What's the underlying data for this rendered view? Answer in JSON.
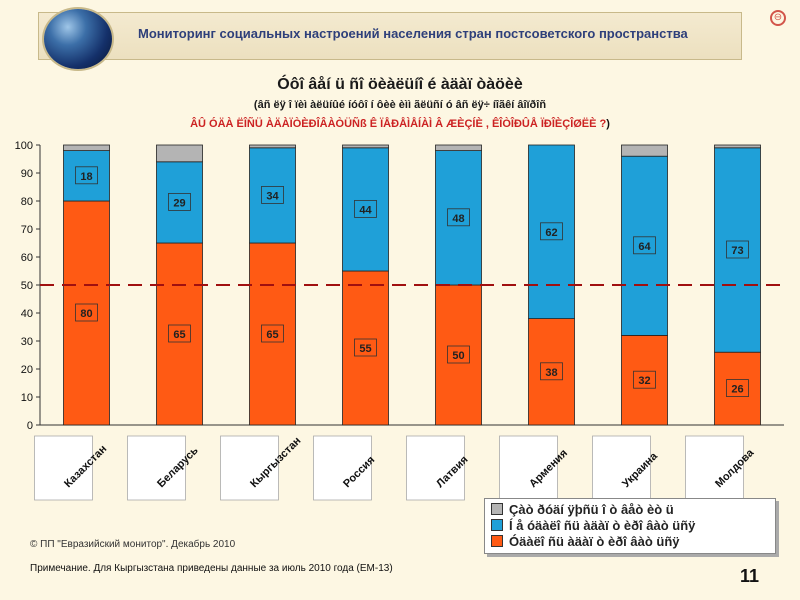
{
  "header": {
    "title": "Мониторинг социальных настроений населения стран постсоветского пространства",
    "logo_icon": "globe-icon",
    "sync_icon": "sync-icon"
  },
  "chart_title": {
    "line1": "Óôî âåí ü ñî öèàëüíî é àäàï òàöèè",
    "line2": "(âñ ëÿ î ïèì àëüíûé íóôî í ôèè èìì ãëüñí ó âñ ëÿ÷ íîãêí âîïðîñ",
    "line3": "ÂÛ ÓÄÀ ËÎÑÜ ÀÄÀÏÒÈÐÎÂÀÒÜÑß Ê ÏÅÐÅÌÅÍÀÌ Â ÆÈÇÍÈ , ÊÎÒÎÐÛÅ ÏÐÎÈÇÎØËÈ ?",
    "line3_paren": ")"
  },
  "chart_data": {
    "type": "bar",
    "stacked": true,
    "categories": [
      "Казахстан",
      "Беларусь",
      "Кыргызстан",
      "Россия",
      "Латвия",
      "Армения",
      "Украина",
      "Молдова"
    ],
    "series": [
      {
        "name": "Óäàëîñü àäàïòèðîâàòüñÿ",
        "label": "Óäàëîñü àäàïòèðîâàòüñÿ",
        "color": "#ff5a14",
        "values": [
          80,
          65,
          65,
          55,
          50,
          38,
          32,
          26
        ],
        "data_labels": [
          "80",
          "65",
          "65",
          "55",
          "50",
          "38",
          "32",
          "26"
        ]
      },
      {
        "name": "Íå óäàëîñü àäàïòèðîâàòüñÿ",
        "label": "Íå óäàëîñü àäàïòèðîâàòüñÿ",
        "color": "#1fa0d8",
        "values": [
          18,
          29,
          34,
          44,
          48,
          62,
          64,
          73
        ],
        "data_labels": [
          "18",
          "29",
          "34",
          "44",
          "48",
          "62",
          "64",
          "73"
        ]
      },
      {
        "name": "Çàòðóäíÿþñü îòâåòèòü",
        "label": "Çàòðóäíÿþñü îòâåòèòü",
        "color": "#b4b4b4",
        "values": [
          2,
          6,
          1,
          1,
          2,
          0,
          4,
          1
        ]
      }
    ],
    "y_ticks": [
      "0",
      "10",
      "20",
      "30",
      "40",
      "50",
      "60",
      "70",
      "80",
      "90",
      "100"
    ],
    "ylim": [
      0,
      100
    ],
    "reference_line": 50,
    "legend_placement": "bottom-right",
    "grid": false
  },
  "legend": {
    "item_gray": "Çàò ðóäí ÿþñü î ò âåò èò ü",
    "item_blue": "Í å óäàëî ñü àäàï ò èðî âàò üñÿ",
    "item_orange": "Óäàëî ñü àäàï ò èðî âàò üñÿ"
  },
  "footer": {
    "copyright": "© ПП \"Евразийский монитор\". Декабрь 2010",
    "note": "Примечание. Для Кыргызстана приведены данные за июль 2010 года (ЕМ-13)",
    "page_number": "11"
  }
}
